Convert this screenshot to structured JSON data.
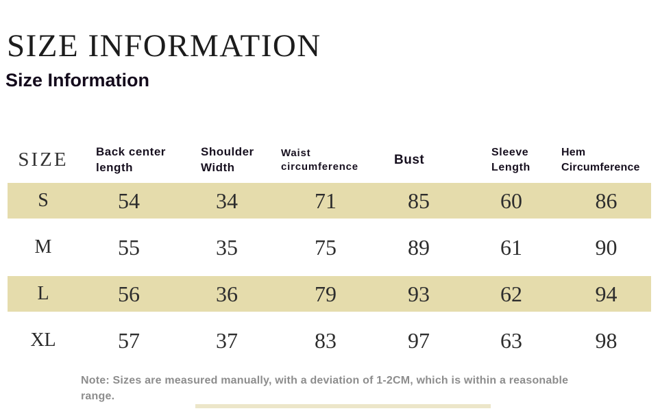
{
  "page": {
    "title": "SIZE INFORMATION",
    "subtitle": "Size Information"
  },
  "table": {
    "stripe_color": "#e5dcac",
    "columns": [
      "SIZE",
      "Back center length",
      "Shoulder Width",
      "Waist circumference",
      "Bust",
      "Sleeve Length",
      "Hem Circumference"
    ],
    "rows": [
      {
        "size": "S",
        "highlighted": true,
        "values": [
          "54",
          "34",
          "71",
          "85",
          "60",
          "86"
        ]
      },
      {
        "size": "M",
        "highlighted": false,
        "values": [
          "55",
          "35",
          "75",
          "89",
          "61",
          "90"
        ]
      },
      {
        "size": "L",
        "highlighted": true,
        "values": [
          "56",
          "36",
          "79",
          "93",
          "62",
          "94"
        ]
      },
      {
        "size": "XL",
        "highlighted": false,
        "values": [
          "57",
          "37",
          "83",
          "97",
          "63",
          "98"
        ]
      }
    ]
  },
  "note": "Note: Sizes are measured manually, with a deviation of 1-2CM, which is within a reasonable range."
}
